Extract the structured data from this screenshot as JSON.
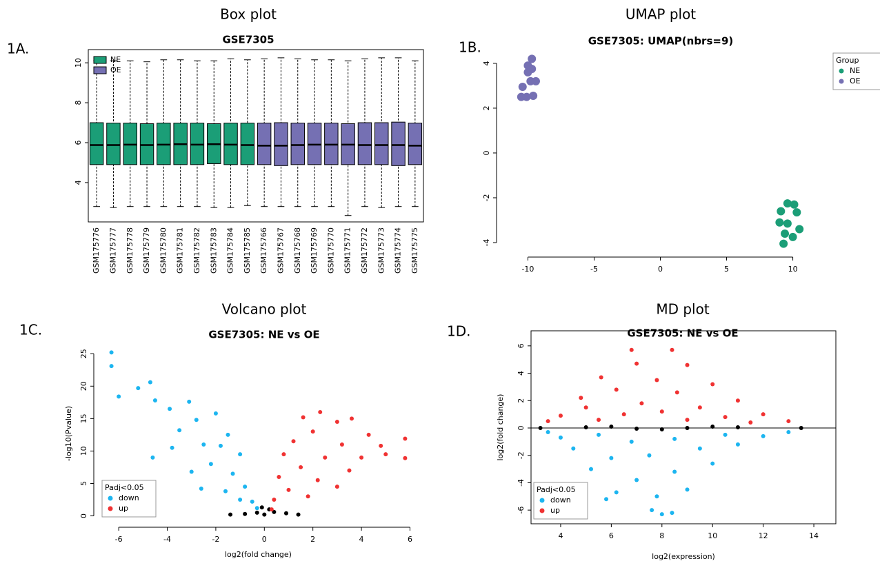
{
  "chart_data": [
    {
      "type": "box",
      "panel_label": "1A.",
      "title": "Box plot",
      "subtitle": "GSE7305",
      "frame": true,
      "legend": "top-left",
      "ylim": [
        2.03,
        10.66
      ],
      "yticks": [
        4,
        6,
        8,
        10
      ],
      "series": [
        {
          "name": "NE",
          "color": "#1b9e77",
          "categories": [
            "GSM175776",
            "GSM175777",
            "GSM175778",
            "GSM175779",
            "GSM175780",
            "GSM175781",
            "GSM175782",
            "GSM175783",
            "GSM175784",
            "GSM175785"
          ],
          "whisker_low": [
            2.8,
            2.75,
            2.8,
            2.8,
            2.8,
            2.8,
            2.8,
            2.75,
            2.75,
            2.85
          ],
          "q1": [
            4.9,
            4.9,
            4.9,
            4.9,
            4.9,
            4.9,
            4.9,
            4.95,
            4.9,
            4.9
          ],
          "median": [
            5.88,
            5.88,
            5.9,
            5.88,
            5.9,
            5.92,
            5.9,
            5.92,
            5.9,
            5.88
          ],
          "q3": [
            7.0,
            6.98,
            6.98,
            6.95,
            6.98,
            6.98,
            6.98,
            6.95,
            6.98,
            6.98
          ],
          "whisker_high": [
            10.1,
            10.1,
            10.1,
            10.05,
            10.15,
            10.15,
            10.1,
            10.1,
            10.2,
            10.15
          ]
        },
        {
          "name": "OE",
          "color": "#7570b3",
          "categories": [
            "GSM175766",
            "GSM175767",
            "GSM175768",
            "GSM175769",
            "GSM175770",
            "GSM175771",
            "GSM175772",
            "GSM175773",
            "GSM175774",
            "GSM175775"
          ],
          "whisker_low": [
            2.8,
            2.8,
            2.8,
            2.8,
            2.8,
            2.35,
            2.8,
            2.75,
            2.8,
            2.8
          ],
          "q1": [
            4.9,
            4.85,
            4.9,
            4.9,
            4.9,
            4.9,
            4.9,
            4.9,
            4.85,
            4.9
          ],
          "median": [
            5.85,
            5.85,
            5.88,
            5.9,
            5.9,
            5.9,
            5.88,
            5.88,
            5.88,
            5.85
          ],
          "q3": [
            6.98,
            7.0,
            6.98,
            6.98,
            6.98,
            6.95,
            7.0,
            7.0,
            7.03,
            6.98
          ],
          "whisker_high": [
            10.2,
            10.25,
            10.2,
            10.15,
            10.15,
            10.1,
            10.2,
            10.25,
            10.25,
            10.1
          ]
        }
      ]
    },
    {
      "type": "scatter",
      "panel_label": "1B.",
      "title": "UMAP plot",
      "subtitle": "GSE7305: UMAP(nbrs=9)",
      "frame": false,
      "legend": "outside-right",
      "legend_title": "Group",
      "xlim": [
        -11.95,
        12.0
      ],
      "xticks": [
        -10,
        -5,
        0,
        5,
        10
      ],
      "ylim": [
        -4.4,
        4.52
      ],
      "yticks": [
        -4,
        -2,
        0,
        2,
        4
      ],
      "series": [
        {
          "name": "NE",
          "color": "#1b9e77",
          "x": [
            9.6,
            10.1,
            9.1,
            10.3,
            9.0,
            9.6,
            10.5,
            9.4,
            10.0,
            9.3
          ],
          "values": [
            -2.25,
            -2.3,
            -2.6,
            -2.65,
            -3.1,
            -3.15,
            -3.4,
            -3.6,
            -3.75,
            -4.05
          ]
        },
        {
          "name": "OE",
          "color": "#7570b3",
          "x": [
            -10.5,
            -10.1,
            -9.6,
            -10.4,
            -9.8,
            -9.4,
            -10.0,
            -9.7,
            -10.0,
            -9.7
          ],
          "values": [
            2.5,
            2.5,
            2.55,
            2.95,
            3.2,
            3.2,
            3.6,
            3.75,
            3.9,
            4.2
          ]
        }
      ]
    },
    {
      "type": "scatter",
      "panel_label": "1C.",
      "title": "Volcano plot",
      "subtitle": "GSE7305: NE vs OE",
      "frame": false,
      "legend": "bottom-left",
      "legend_title": "Padj<0.05",
      "x_label": "log2(fold change)",
      "y_label": "-log10(Pvalue)",
      "xlim": [
        -6.8,
        6.3
      ],
      "xticks": [
        -6,
        -4,
        -2,
        0,
        2,
        4,
        6
      ],
      "ylim": [
        -0.9,
        26.3
      ],
      "yticks": [
        0,
        5,
        10,
        15,
        20,
        25
      ],
      "series": [
        {
          "color": "#000000",
          "x": [
            -0.3,
            0,
            0.4,
            -0.8,
            0.9,
            0.2,
            -0.1,
            1.4,
            -1.4
          ],
          "values": [
            0.5,
            0.2,
            0.6,
            0.3,
            0.4,
            1.0,
            1.3,
            0.2,
            0.2
          ]
        },
        {
          "name": "down",
          "color": "#1cb5f0",
          "x": [
            -6.3,
            -6.3,
            -6.0,
            -5.2,
            -4.7,
            -4.5,
            -3.9,
            -3.1,
            -2.8,
            -3.5,
            -2.0,
            -1.5,
            -2.5,
            -3.8,
            -4.6,
            -1.0,
            -2.2,
            -1.3,
            -3.0,
            -0.8,
            -1.6,
            -0.5,
            -2.6,
            -0.3,
            -1.0,
            -1.8
          ],
          "values": [
            25.2,
            23.1,
            18.4,
            19.7,
            20.6,
            17.8,
            16.5,
            17.6,
            14.8,
            13.2,
            15.8,
            12.5,
            11.0,
            10.5,
            9.0,
            9.5,
            8.0,
            6.5,
            6.8,
            4.5,
            3.8,
            2.2,
            4.2,
            1.2,
            2.5,
            10.8
          ]
        },
        {
          "name": "up",
          "color": "#f03232",
          "x": [
            2.3,
            1.6,
            3.0,
            3.6,
            2.0,
            4.3,
            1.2,
            3.2,
            5.8,
            4.8,
            0.8,
            2.5,
            5.0,
            5.8,
            1.5,
            3.5,
            0.6,
            2.2,
            1.0,
            3.0,
            0.4,
            1.8,
            0.3,
            4.0
          ],
          "values": [
            16.0,
            15.2,
            14.5,
            15.0,
            13.0,
            12.5,
            11.5,
            11.0,
            11.9,
            10.8,
            9.5,
            9.0,
            9.5,
            8.9,
            7.5,
            7.0,
            6.0,
            5.5,
            4.0,
            4.5,
            2.5,
            3.0,
            1.0,
            9.0
          ]
        }
      ]
    },
    {
      "type": "scatter",
      "panel_label": "1D.",
      "title": "MD plot",
      "subtitle": "GSE7305: NE vs OE",
      "frame": true,
      "legend": "bottom-left",
      "legend_title": "Padj<0.05",
      "hline": 0,
      "x_label": "log2(expression)",
      "y_label": "log2(fold change)",
      "xlim": [
        2.83,
        14.87
      ],
      "xticks": [
        4,
        6,
        8,
        10,
        12,
        14
      ],
      "ylim": [
        -7.0,
        7.1
      ],
      "yticks": [
        -6,
        -4,
        -2,
        0,
        2,
        4,
        6
      ],
      "series": [
        {
          "name": "down",
          "color": "#1cb5f0",
          "x": [
            8.0,
            7.6,
            8.4,
            5.8,
            7.8,
            6.2,
            9.0,
            7.0,
            5.2,
            8.5,
            10.0,
            6.0,
            7.5,
            11.0,
            4.5,
            9.5,
            6.8,
            12.0,
            4.0,
            8.5,
            13.0,
            5.5,
            10.5,
            3.5
          ],
          "values": [
            -6.3,
            -6.0,
            -6.2,
            -5.2,
            -5.0,
            -4.7,
            -4.5,
            -3.8,
            -3.0,
            -3.2,
            -2.6,
            -2.2,
            -2.0,
            -1.2,
            -1.5,
            -1.5,
            -1.0,
            -0.6,
            -0.7,
            -0.8,
            -0.3,
            -0.5,
            -0.5,
            -0.3
          ]
        },
        {
          "name": "up",
          "color": "#f03232",
          "x": [
            6.8,
            8.4,
            7.0,
            9.0,
            5.6,
            7.8,
            10.0,
            6.2,
            8.6,
            4.8,
            11.0,
            5.0,
            7.2,
            9.5,
            12.0,
            4.0,
            6.5,
            8.0,
            10.5,
            3.5,
            13.0,
            5.5,
            9.0,
            11.5
          ],
          "values": [
            5.7,
            5.7,
            4.7,
            4.6,
            3.7,
            3.5,
            3.2,
            2.8,
            2.6,
            2.2,
            2.0,
            1.5,
            1.8,
            1.5,
            1.0,
            0.9,
            1.0,
            1.2,
            0.8,
            0.5,
            0.5,
            0.6,
            0.6,
            0.4
          ]
        },
        {
          "color": "#000000",
          "x": [
            3.2,
            5,
            7,
            9,
            11,
            13.5,
            6,
            8,
            10
          ],
          "values": [
            0,
            0.05,
            -0.05,
            0,
            0.05,
            0,
            0.1,
            -0.1,
            0.1
          ]
        }
      ]
    }
  ]
}
